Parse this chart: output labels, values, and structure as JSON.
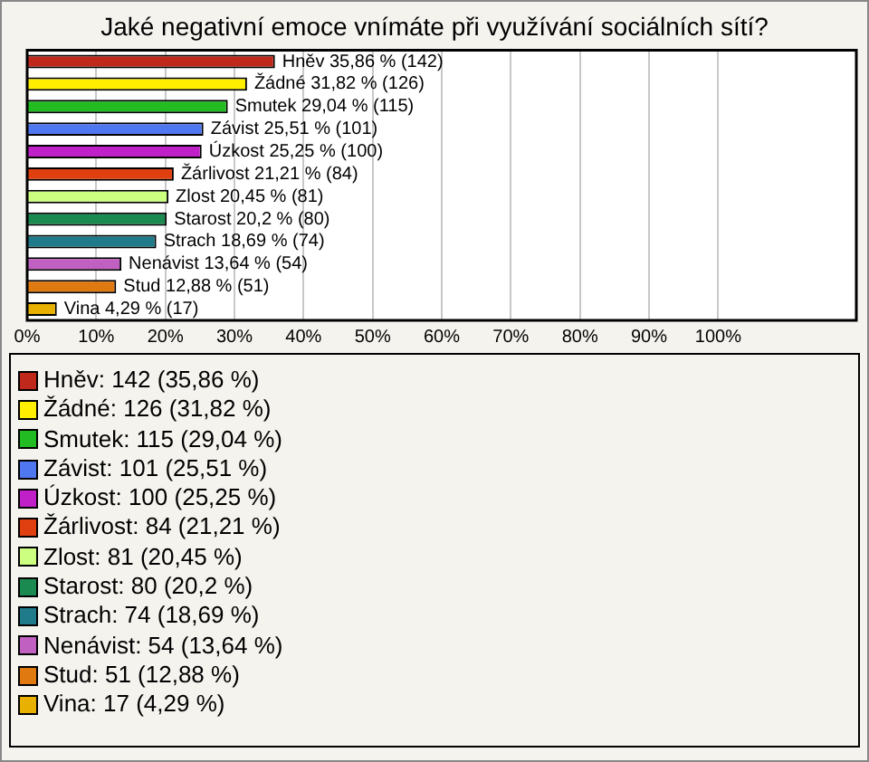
{
  "chart_data": {
    "type": "bar",
    "orientation": "horizontal",
    "title": "Jaké negativní emoce vnímáte při využívání sociálních sítí?",
    "categories": [
      null,
      null,
      null,
      null,
      null,
      null,
      null,
      null,
      null,
      null,
      null,
      null
    ],
    "xlim": [
      0,
      120
    ],
    "xticks": [
      {
        "value": 0,
        "label": "0%"
      },
      {
        "value": 10,
        "label": "10%"
      },
      {
        "value": 20,
        "label": "20%"
      },
      {
        "value": 30,
        "label": "30%"
      },
      {
        "value": 40,
        "label": "40%"
      },
      {
        "value": 50,
        "label": "50%"
      },
      {
        "value": 60,
        "label": "60%"
      },
      {
        "value": 70,
        "label": "70%"
      },
      {
        "value": 80,
        "label": "80%"
      },
      {
        "value": 90,
        "label": "90%"
      },
      {
        "value": 100,
        "label": "100%"
      }
    ],
    "tick_labels": "x",
    "grid": "x",
    "legend": "bottom",
    "series": [
      {
        "name": "Hněv: 142 (35,86 %)",
        "color": "#c0281c",
        "values": [
          35.86,
          null,
          null,
          null,
          null,
          null,
          null,
          null,
          null,
          null,
          null,
          null
        ],
        "value_labels": [
          "Hněv 35,86 % (142)",
          null,
          null,
          null,
          null,
          null,
          null,
          null,
          null,
          null,
          null,
          null
        ]
      },
      {
        "name": "Žádné: 126 (31,82 %)",
        "color": "#ffee00",
        "values": [
          null,
          31.82,
          null,
          null,
          null,
          null,
          null,
          null,
          null,
          null,
          null,
          null
        ],
        "value_labels": [
          null,
          "Žádné 31,82 % (126)",
          null,
          null,
          null,
          null,
          null,
          null,
          null,
          null,
          null,
          null
        ]
      },
      {
        "name": "Smutek: 115 (29,04 %)",
        "color": "#22bb22",
        "values": [
          null,
          null,
          29.04,
          null,
          null,
          null,
          null,
          null,
          null,
          null,
          null,
          null
        ],
        "value_labels": [
          null,
          null,
          "Smutek 29,04 % (115)",
          null,
          null,
          null,
          null,
          null,
          null,
          null,
          null,
          null
        ]
      },
      {
        "name": "Závist: 101 (25,51 %)",
        "color": "#4f78f0",
        "values": [
          null,
          null,
          null,
          25.51,
          null,
          null,
          null,
          null,
          null,
          null,
          null,
          null
        ],
        "value_labels": [
          null,
          null,
          null,
          "Závist 25,51 % (101)",
          null,
          null,
          null,
          null,
          null,
          null,
          null,
          null
        ]
      },
      {
        "name": "Úzkost: 100 (25,25 %)",
        "color": "#c020c8",
        "values": [
          null,
          null,
          null,
          null,
          25.25,
          null,
          null,
          null,
          null,
          null,
          null,
          null
        ],
        "value_labels": [
          null,
          null,
          null,
          null,
          "Úzkost 25,25 % (100)",
          null,
          null,
          null,
          null,
          null,
          null,
          null
        ]
      },
      {
        "name": "Žárlivost: 84 (21,21 %)",
        "color": "#e04010",
        "values": [
          null,
          null,
          null,
          null,
          null,
          21.21,
          null,
          null,
          null,
          null,
          null,
          null
        ],
        "value_labels": [
          null,
          null,
          null,
          null,
          null,
          "Žárlivost 21,21 % (84)",
          null,
          null,
          null,
          null,
          null,
          null
        ]
      },
      {
        "name": "Zlost: 81 (20,45 %)",
        "color": "#ccff80",
        "values": [
          null,
          null,
          null,
          null,
          null,
          null,
          20.45,
          null,
          null,
          null,
          null,
          null
        ],
        "value_labels": [
          null,
          null,
          null,
          null,
          null,
          null,
          "Zlost 20,45 % (81)",
          null,
          null,
          null,
          null,
          null
        ]
      },
      {
        "name": "Starost: 80 (20,2 %)",
        "color": "#1a8a50",
        "values": [
          null,
          null,
          null,
          null,
          null,
          null,
          null,
          20.2,
          null,
          null,
          null,
          null
        ],
        "value_labels": [
          null,
          null,
          null,
          null,
          null,
          null,
          null,
          "Starost 20,2 % (80)",
          null,
          null,
          null,
          null
        ]
      },
      {
        "name": "Strach: 74 (18,69 %)",
        "color": "#1f7a8a",
        "values": [
          null,
          null,
          null,
          null,
          null,
          null,
          null,
          null,
          18.69,
          null,
          null,
          null
        ],
        "value_labels": [
          null,
          null,
          null,
          null,
          null,
          null,
          null,
          null,
          "Strach 18,69 % (74)",
          null,
          null,
          null
        ]
      },
      {
        "name": "Nenávist: 54 (13,64 %)",
        "color": "#c060c0",
        "values": [
          null,
          null,
          null,
          null,
          null,
          null,
          null,
          null,
          null,
          13.64,
          null,
          null
        ],
        "value_labels": [
          null,
          null,
          null,
          null,
          null,
          null,
          null,
          null,
          null,
          "Nenávist 13,64 % (54)",
          null,
          null
        ]
      },
      {
        "name": "Stud: 51 (12,88 %)",
        "color": "#e07a10",
        "values": [
          null,
          null,
          null,
          null,
          null,
          null,
          null,
          null,
          null,
          null,
          12.88,
          null
        ],
        "value_labels": [
          null,
          null,
          null,
          null,
          null,
          null,
          null,
          null,
          null,
          null,
          "Stud 12,88 % (51)",
          null
        ]
      },
      {
        "name": "Vina: 17 (4,29 %)",
        "color": "#e8b000",
        "values": [
          null,
          null,
          null,
          null,
          null,
          null,
          null,
          null,
          null,
          null,
          null,
          4.29
        ],
        "value_labels": [
          null,
          null,
          null,
          null,
          null,
          null,
          null,
          null,
          null,
          null,
          null,
          "Vina 4,29 % (17)"
        ]
      }
    ]
  }
}
